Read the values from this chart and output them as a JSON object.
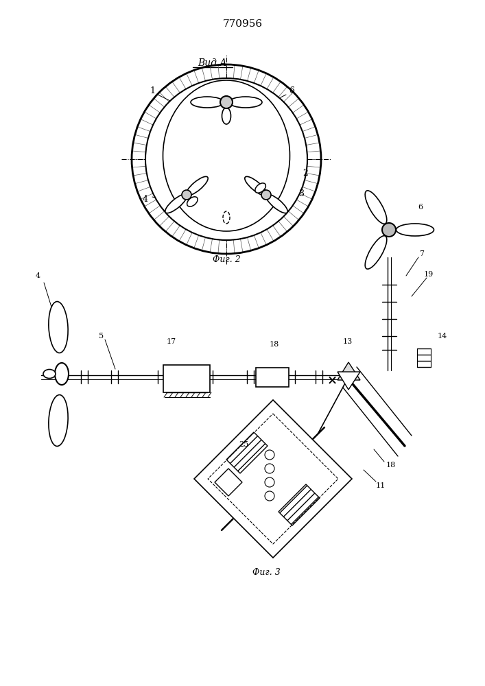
{
  "patent_number": "770956",
  "fig2_label": "Вид А",
  "fig2_caption": "Фиг. 2",
  "fig3_caption": "Фиг. 3",
  "bg_color": "#ffffff",
  "line_color": "#000000"
}
